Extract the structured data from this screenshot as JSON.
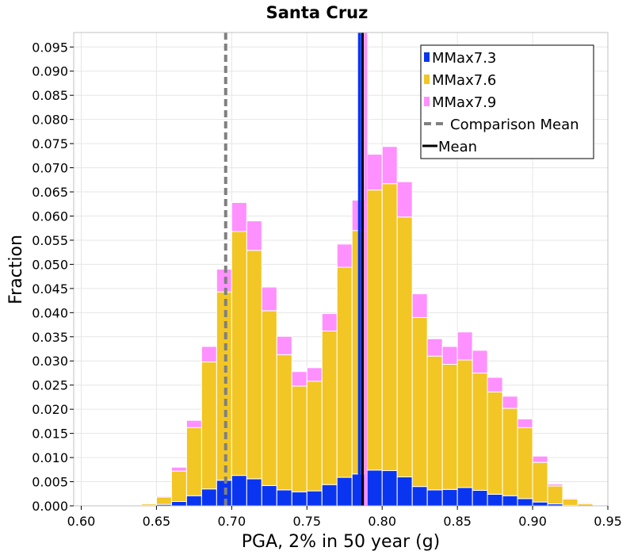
{
  "chart_data": {
    "type": "bar",
    "stacked": true,
    "title": "Santa Cruz",
    "xlabel": "PGA, 2% in 50 year (g)",
    "ylabel": "Fraction",
    "xlim": [
      0.595,
      0.95
    ],
    "ylim": [
      0,
      0.098
    ],
    "xticks": [
      "0.60",
      "0.65",
      "0.70",
      "0.75",
      "0.80",
      "0.85",
      "0.90",
      "0.95"
    ],
    "yticks": [
      "0.000",
      "0.005",
      "0.010",
      "0.015",
      "0.020",
      "0.025",
      "0.030",
      "0.035",
      "0.040",
      "0.045",
      "0.050",
      "0.055",
      "0.060",
      "0.065",
      "0.070",
      "0.075",
      "0.080",
      "0.085",
      "0.090",
      "0.095"
    ],
    "bin_width": 0.01,
    "x": [
      0.645,
      0.655,
      0.665,
      0.675,
      0.685,
      0.695,
      0.705,
      0.715,
      0.725,
      0.735,
      0.745,
      0.755,
      0.765,
      0.775,
      0.785,
      0.795,
      0.805,
      0.815,
      0.825,
      0.835,
      0.845,
      0.855,
      0.865,
      0.875,
      0.885,
      0.895,
      0.905,
      0.915,
      0.925,
      0.935
    ],
    "series": [
      {
        "name": "MMax7.3",
        "color": "#0a35f0",
        "values": [
          0.0001,
          0.0003,
          0.0009,
          0.0021,
          0.0035,
          0.0053,
          0.0063,
          0.0056,
          0.0042,
          0.0033,
          0.0029,
          0.0031,
          0.0044,
          0.0059,
          0.0066,
          0.0074,
          0.0073,
          0.006,
          0.004,
          0.0033,
          0.0034,
          0.0038,
          0.0032,
          0.0024,
          0.0021,
          0.0015,
          0.0008,
          0.0004,
          0.0001,
          0.0
        ]
      },
      {
        "name": "MMax7.6",
        "color": "#f2c624",
        "values": [
          0.0003,
          0.0015,
          0.0063,
          0.0141,
          0.0263,
          0.039,
          0.0505,
          0.0473,
          0.0362,
          0.028,
          0.0219,
          0.0227,
          0.0318,
          0.0435,
          0.0504,
          0.058,
          0.0594,
          0.0538,
          0.035,
          0.0277,
          0.0259,
          0.0264,
          0.0243,
          0.0212,
          0.0181,
          0.0147,
          0.0082,
          0.0037,
          0.0013,
          0.0004
        ]
      },
      {
        "name": "MMax7.9",
        "color": "#ff90ff",
        "values": [
          0.0001,
          0.0002,
          0.0008,
          0.0015,
          0.0032,
          0.0047,
          0.006,
          0.0061,
          0.0049,
          0.0038,
          0.003,
          0.0028,
          0.0036,
          0.0048,
          0.0063,
          0.0074,
          0.0077,
          0.0073,
          0.0049,
          0.0036,
          0.0037,
          0.0058,
          0.0047,
          0.003,
          0.0025,
          0.0018,
          0.0013,
          0.0004,
          0.0002,
          0.0002
        ]
      }
    ],
    "mean_lines": [
      {
        "name": "Comparison Mean",
        "x": 0.696,
        "color": "#808080",
        "dashed": true
      },
      {
        "name": "Mean",
        "x": 0.787,
        "color": "#000000",
        "dashed": false
      }
    ],
    "series_mean_lines": [
      {
        "series": "MMax7.3",
        "x": 0.785
      },
      {
        "series": "MMax7.9",
        "x": 0.789
      }
    ],
    "grid": true,
    "legend_position": "top-right"
  }
}
